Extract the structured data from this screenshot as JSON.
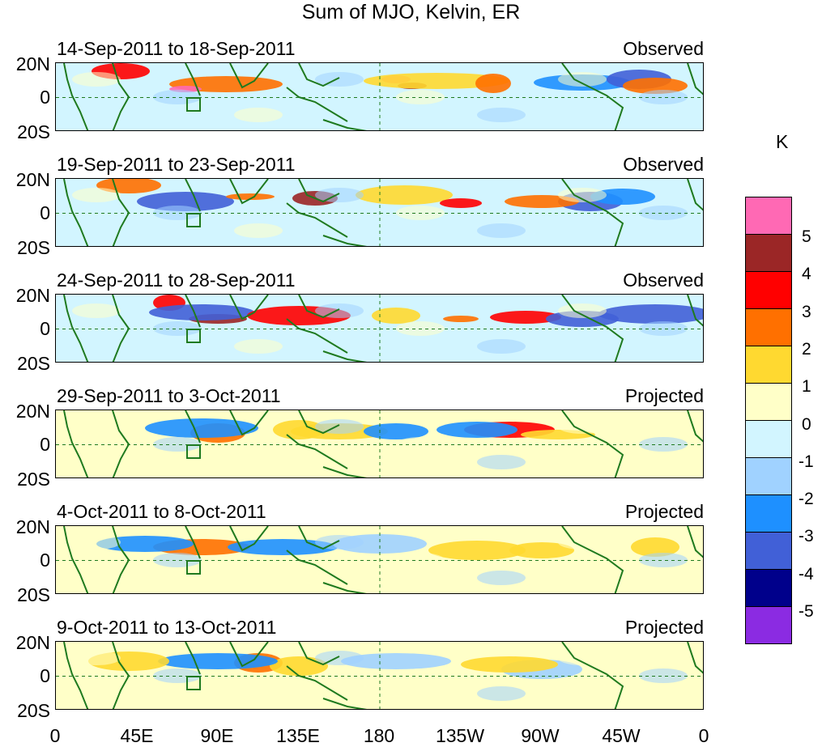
{
  "title": "Sum of MJO, Kelvin, ER",
  "unit": "K",
  "lat_labels": [
    "20N",
    "0",
    "20S"
  ],
  "lon_labels": [
    "0",
    "45E",
    "90E",
    "135E",
    "180",
    "135W",
    "90W",
    "45W",
    "0"
  ],
  "panels": [
    {
      "date": "14-Sep-2011 to 18-Sep-2011",
      "status": "Observed"
    },
    {
      "date": "19-Sep-2011 to 23-Sep-2011",
      "status": "Observed"
    },
    {
      "date": "24-Sep-2011 to 28-Sep-2011",
      "status": "Observed"
    },
    {
      "date": "29-Sep-2011 to 3-Oct-2011",
      "status": "Projected"
    },
    {
      "date": "4-Oct-2011 to 8-Oct-2011",
      "status": "Projected"
    },
    {
      "date": "9-Oct-2011 to 13-Oct-2011",
      "status": "Projected"
    }
  ],
  "colorbar": {
    "colors": [
      "#ff69b4",
      "#9b2626",
      "#ff0000",
      "#ff7000",
      "#ffd930",
      "#ffffc8",
      "#d2f5ff",
      "#a0d2ff",
      "#1e90ff",
      "#4160d7",
      "#00008b",
      "#8b2be2"
    ],
    "ticks": [
      "5",
      "4",
      "3",
      "2",
      "1",
      "0",
      "-1",
      "-2",
      "-3",
      "-4",
      "-5"
    ]
  },
  "colors": {
    "coastline": "#1f7a1f",
    "reference_line": "#1f7a1f"
  }
}
